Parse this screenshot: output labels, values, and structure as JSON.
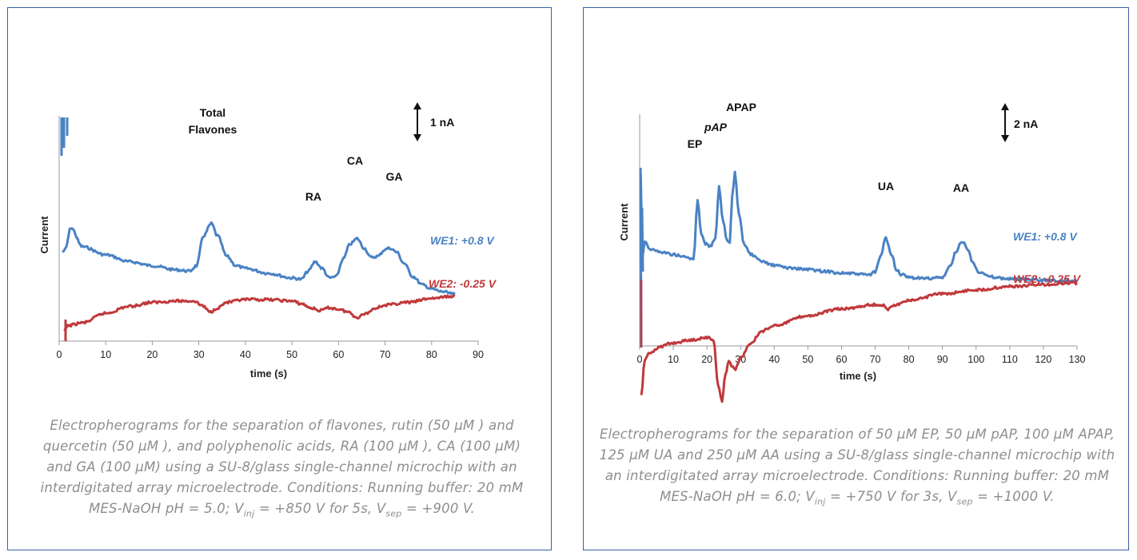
{
  "colors": {
    "we1": "#4a82c4",
    "we2": "#c0393b",
    "frame": "#3a5ea8",
    "caption": "#8e8e8e",
    "axis": "#333333"
  },
  "chart_data": [
    {
      "type": "line",
      "title": "",
      "xlabel": "time (s)",
      "ylabel": "Current",
      "xlim": [
        0,
        90
      ],
      "xticks": [
        "0",
        "10",
        "20",
        "30",
        "40",
        "50",
        "60",
        "70",
        "80",
        "90"
      ],
      "scale_bar": {
        "label": "1 nA",
        "nA": 1
      },
      "peak_labels": [
        {
          "text": "Total",
          "x": 33
        },
        {
          "text": "Flavones",
          "x": 33
        },
        {
          "text": "RA",
          "x": 55
        },
        {
          "text": "CA",
          "x": 64
        },
        {
          "text": "GA",
          "x": 71
        }
      ],
      "series": [
        {
          "name": "WE1: +0.8 V",
          "color": "#4a82c4",
          "x": [
            0.7,
            1.3,
            2.5,
            5,
            10,
            15,
            20,
            25,
            28,
            29.5,
            31,
            32.7,
            34,
            36,
            38,
            40,
            45,
            50,
            52,
            53.5,
            55,
            56.5,
            58,
            59.5,
            61,
            62.5,
            64,
            65.5,
            67,
            68.5,
            70,
            71,
            72.5,
            74,
            76,
            78,
            80,
            82,
            85
          ],
          "y_nA": [
            -0.4,
            -0.3,
            0.5,
            -0.2,
            -0.5,
            -0.75,
            -0.9,
            -1.05,
            -1.1,
            -0.9,
            0.2,
            0.65,
            0.2,
            -0.55,
            -0.9,
            -1.0,
            -1.18,
            -1.35,
            -1.4,
            -1.1,
            -0.75,
            -1.0,
            -1.35,
            -1.3,
            -0.65,
            -0.1,
            0.1,
            -0.25,
            -0.6,
            -0.55,
            -0.3,
            -0.25,
            -0.4,
            -0.8,
            -1.3,
            -1.6,
            -1.75,
            -1.85,
            -1.95
          ]
        },
        {
          "name": "WE2: -0.25 V",
          "color": "#c0393b",
          "x": [
            1,
            2,
            5,
            10,
            15,
            20,
            25,
            29,
            30.5,
            32.5,
            34,
            36,
            40,
            45,
            50,
            52,
            54,
            56,
            58,
            60,
            62,
            64,
            66,
            68,
            70,
            75,
            80,
            85
          ],
          "y_nA": [
            -3.3,
            -3.1,
            -3.0,
            -2.65,
            -2.4,
            -2.25,
            -2.2,
            -2.2,
            -2.35,
            -2.6,
            -2.45,
            -2.25,
            -2.15,
            -2.15,
            -2.2,
            -2.3,
            -2.45,
            -2.55,
            -2.45,
            -2.5,
            -2.6,
            -2.8,
            -2.65,
            -2.45,
            -2.35,
            -2.25,
            -2.1,
            -2.02
          ]
        }
      ],
      "series_labels": [
        "WE1: +0.8 V",
        "WE2: -0.25 V"
      ]
    },
    {
      "type": "line",
      "title": "",
      "xlabel": "time (s)",
      "ylabel": "Current",
      "xlim": [
        0,
        130
      ],
      "xticks": [
        "0",
        "10",
        "20",
        "30",
        "40",
        "50",
        "60",
        "70",
        "80",
        "90",
        "100",
        "110",
        "120",
        "130"
      ],
      "scale_bar": {
        "label": "2 nA",
        "nA": 2
      },
      "peak_labels": [
        {
          "text": "EP",
          "x": 17
        },
        {
          "text": "pAP",
          "x": 23
        },
        {
          "text": "APAP",
          "x": 28
        },
        {
          "text": "UA",
          "x": 73
        },
        {
          "text": "AA",
          "x": 96
        }
      ],
      "series": [
        {
          "name": "WE1: +0.8 V",
          "color": "#4a82c4",
          "x": [
            0.3,
            0.8,
            1.5,
            3,
            6,
            10,
            14,
            16,
            17.2,
            18.3,
            19.5,
            21,
            22.5,
            23.6,
            24.8,
            26,
            26.8,
            27.5,
            28.3,
            29.5,
            31,
            33,
            36,
            40,
            45,
            50,
            55,
            60,
            65,
            68,
            70,
            71.5,
            73.2,
            74.8,
            76.5,
            78,
            80,
            85,
            90,
            92.5,
            94,
            95.8,
            97.5,
            99,
            101,
            104,
            108,
            115,
            120,
            125,
            130
          ],
          "y_nA": [
            6.6,
            3.5,
            4.1,
            3.8,
            3.7,
            3.6,
            3.5,
            3.4,
            5.6,
            4.4,
            4.0,
            3.9,
            4.2,
            6.1,
            4.8,
            4.1,
            4.0,
            5.7,
            6.6,
            5.1,
            4.0,
            3.6,
            3.35,
            3.2,
            3.1,
            3.05,
            2.98,
            2.92,
            2.88,
            2.85,
            2.95,
            3.5,
            4.2,
            3.6,
            3.0,
            2.85,
            2.75,
            2.72,
            2.75,
            3.2,
            3.7,
            4.1,
            3.8,
            3.3,
            2.95,
            2.78,
            2.72,
            2.68,
            2.66,
            2.64,
            2.62
          ]
        },
        {
          "name": "WE2: -0.25 V",
          "color": "#c0393b",
          "x": [
            0.5,
            1.5,
            3,
            6,
            10,
            15,
            20,
            22,
            23.3,
            24.5,
            25.5,
            26.5,
            27.3,
            28.5,
            30,
            33,
            36,
            40,
            50,
            60,
            70,
            72.5,
            73.5,
            74.5,
            80,
            90,
            100,
            110,
            120,
            130
          ],
          "y_nA": [
            -1.6,
            -0.3,
            0.0,
            0.2,
            0.35,
            0.45,
            0.55,
            0.45,
            -1.2,
            -1.8,
            -0.8,
            -0.3,
            -0.5,
            -0.6,
            -0.2,
            0.3,
            0.75,
            1.0,
            1.35,
            1.6,
            1.75,
            1.72,
            1.55,
            1.7,
            1.9,
            2.15,
            2.3,
            2.42,
            2.5,
            2.55
          ]
        }
      ],
      "series_labels": [
        "WE1: +0.8 V",
        "WE2: -0.25 V"
      ]
    }
  ],
  "captions": {
    "left": {
      "text": "Electropherograms  for the separation of  flavones, rutin (50 µM ) and quercetin (50 µM ), and polyphenolic acids, RA (100 µM ), CA (100 µM) and GA (100 µM) using a SU-8/glass single-channel microchip with an interdigitated array microelectrode. Conditions: Running buffer: 20 mM MES-NaOH pH = 5.0; V",
      "sub_inj": "inj",
      "mid": " = +850 V for 5s, V",
      "sub_sep": "sep",
      "end": " = +900 V."
    },
    "right": {
      "text": "Electropherograms for the separation of 50 µM EP, 50 µM pAP, 100 µM APAP, 125 µM  UA and 250 µM AA using a SU-8/glass single-channel microchip with an interdigitated array microelectrode. Conditions: Running buffer: 20 mM MES-NaOH pH = 6.0; V",
      "sub_inj": "inj",
      "mid": " = +750 V for 3s, V",
      "sub_sep": "sep",
      "end": " = +1000 V."
    }
  }
}
